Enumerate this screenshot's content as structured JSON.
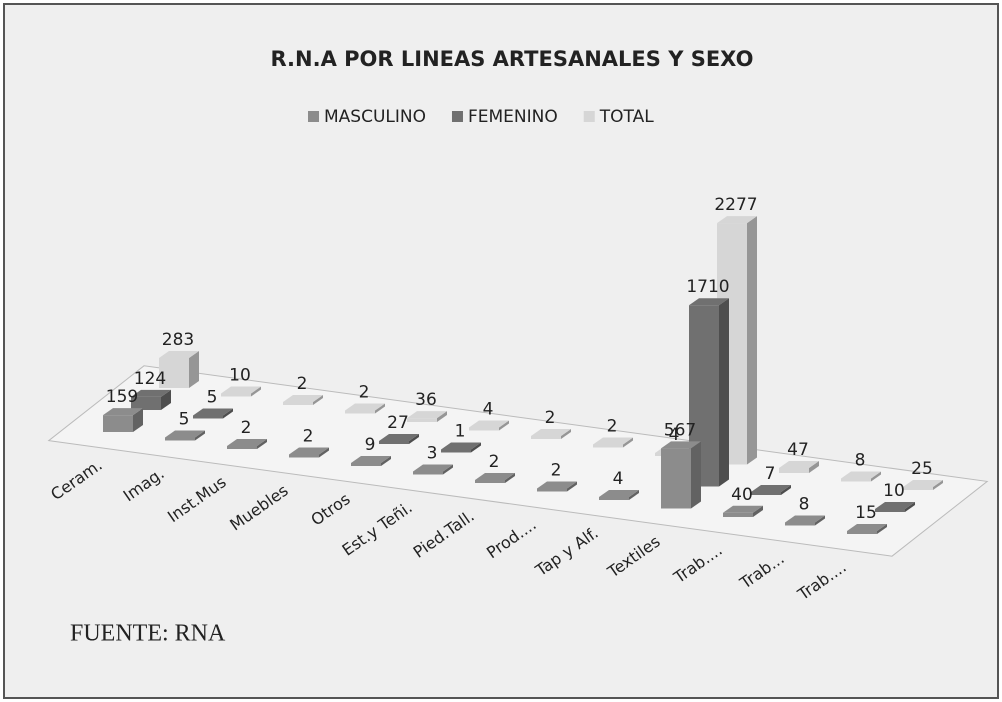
{
  "chart_data": {
    "type": "bar3d",
    "title": "R.N.A POR LINEAS ARTESANALES Y SEXO",
    "source": "FUENTE: RNA",
    "categories": [
      "Ceram.",
      "Imag.",
      "Inst.Mus",
      "Muebles",
      "Otros",
      "Est.y Teñi.",
      "Pied.Tall.",
      "Prod....",
      "Tap y Alf.",
      "Textiles",
      "Trab....",
      "Trab...",
      "Trab...."
    ],
    "series": [
      {
        "name": "MASCULINO",
        "color": "#8c8c8c",
        "values": [
          159,
          5,
          2,
          2,
          9,
          3,
          2,
          2,
          4,
          567,
          40,
          8,
          15
        ]
      },
      {
        "name": "FEMENINO",
        "color": "#707070",
        "values": [
          124,
          5,
          null,
          null,
          27,
          1,
          null,
          null,
          null,
          1710,
          7,
          null,
          10
        ]
      },
      {
        "name": "TOTAL",
        "color": "#d6d6d6",
        "values": [
          283,
          10,
          2,
          2,
          36,
          4,
          2,
          2,
          4,
          2277,
          47,
          8,
          25
        ]
      }
    ],
    "ylim": [
      0,
      2500
    ]
  }
}
